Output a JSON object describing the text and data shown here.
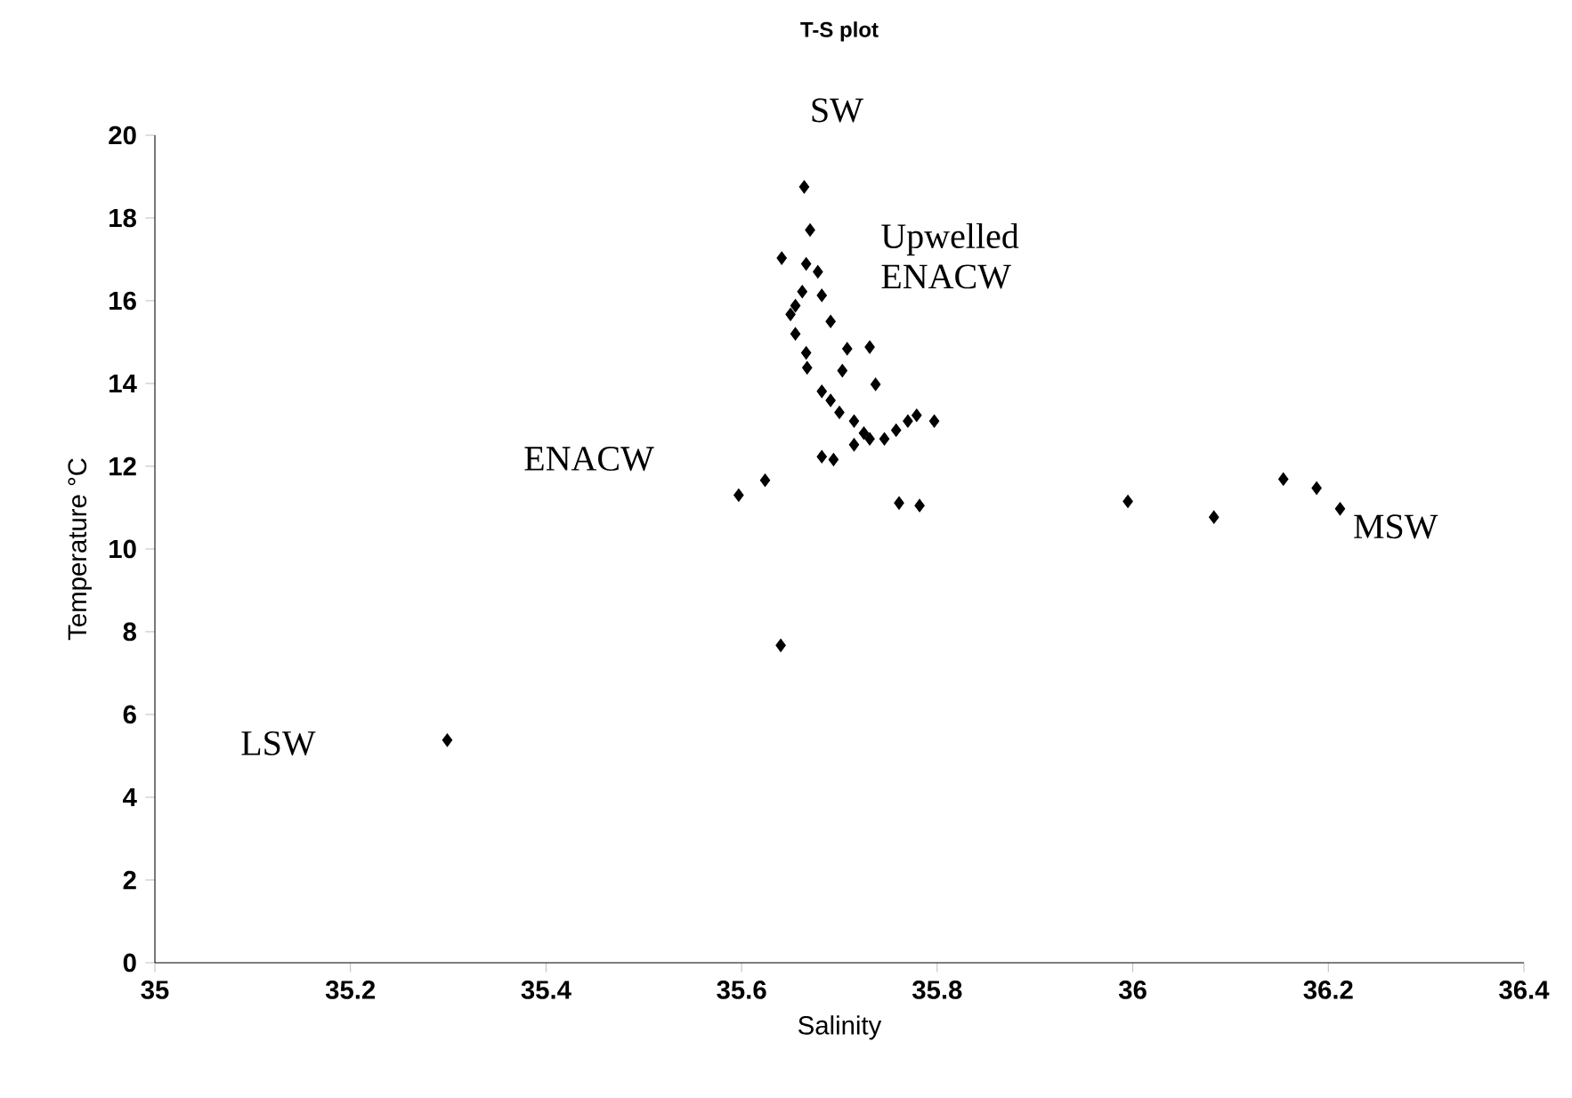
{
  "chart_data": {
    "type": "scatter",
    "title": "T-S plot",
    "xlabel": "Salinity",
    "ylabel": "Temperature °C",
    "x": [
      35.664,
      35.67,
      35.641,
      35.666,
      35.678,
      35.662,
      35.682,
      35.655,
      35.65,
      35.691,
      35.655,
      35.666,
      35.708,
      35.731,
      35.667,
      35.703,
      35.737,
      35.682,
      35.691,
      35.7,
      35.715,
      35.725,
      35.715,
      35.731,
      35.746,
      35.758,
      35.77,
      35.779,
      35.797,
      35.682,
      35.694,
      35.597,
      35.624,
      35.761,
      35.782,
      35.995,
      36.083,
      36.154,
      36.188,
      36.212,
      35.64,
      35.299
    ],
    "series": [
      {
        "color": "#000000",
        "values": [
          18.75,
          17.71,
          17.03,
          16.89,
          16.7,
          16.22,
          16.13,
          15.88,
          15.67,
          15.5,
          15.2,
          14.74,
          14.84,
          14.88,
          14.38,
          14.31,
          13.98,
          13.81,
          13.59,
          13.3,
          13.09,
          12.8,
          12.52,
          12.66,
          12.66,
          12.87,
          13.09,
          13.23,
          13.09,
          12.23,
          12.16,
          11.3,
          11.66,
          11.11,
          11.05,
          11.15,
          10.77,
          11.69,
          11.47,
          10.97,
          7.67,
          5.38
        ]
      }
    ],
    "xlim": [
      35,
      36.4
    ],
    "xticks": [
      35,
      35.2,
      35.4,
      35.6,
      35.8,
      36,
      36.2,
      36.4
    ],
    "ylim": [
      0,
      20
    ],
    "yticks": [
      0,
      2,
      4,
      6,
      8,
      10,
      12,
      14,
      16,
      18,
      20
    ],
    "marker": "diamond",
    "grid": false,
    "annotations": [
      "SW",
      "Upwelled ENACW",
      "ENACW",
      "MSW",
      "LSW"
    ]
  }
}
